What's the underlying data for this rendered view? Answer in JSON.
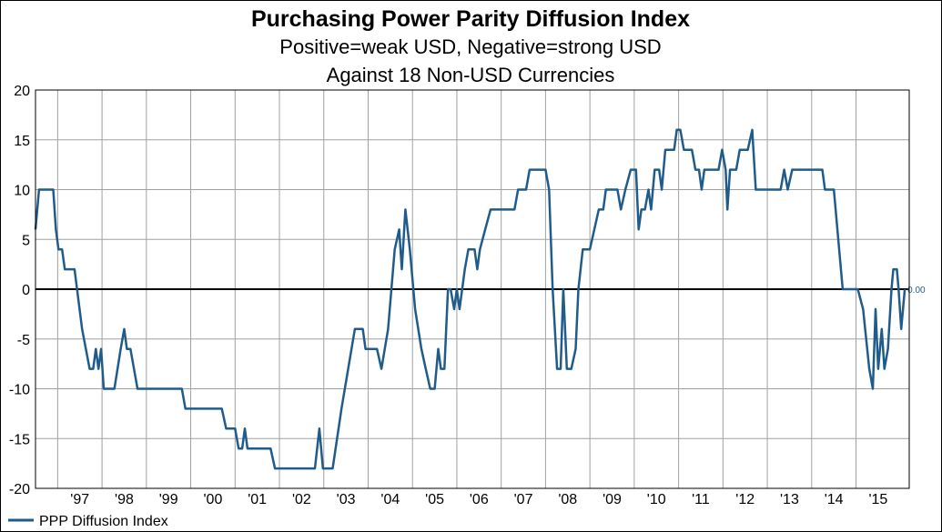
{
  "chart_data": {
    "type": "line",
    "title": "Purchasing Power Parity Diffusion Index",
    "subtitle": [
      "Positive=weak USD, Negative=strong USD",
      "Against 18 Non-USD Currencies"
    ],
    "ylim": [
      -20,
      20
    ],
    "yticks": [
      20,
      15,
      10,
      5,
      0,
      -5,
      -10,
      -15,
      -20
    ],
    "x_domain": [
      1996.5,
      2016.2
    ],
    "x_tick_labels": [
      "'97",
      "'98",
      "'99",
      "'00",
      "'01",
      "'02",
      "'03",
      "'04",
      "'05",
      "'06",
      "'07",
      "'08",
      "'09",
      "'10",
      "'11",
      "'12",
      "'13",
      "'14",
      "'15"
    ],
    "x_tick_years": [
      1997,
      1998,
      1999,
      2000,
      2001,
      2002,
      2003,
      2004,
      2005,
      2006,
      2007,
      2008,
      2009,
      2010,
      2011,
      2012,
      2013,
      2014,
      2015
    ],
    "grid": true,
    "legend": "bottom-left",
    "end_value_label": "0.00",
    "colors": {
      "series": "#1f5c8b",
      "grid": "#a0a0a0",
      "zero_line": "#000000"
    },
    "series": [
      {
        "name": "PPP Diffusion Index",
        "points": [
          [
            1996.5,
            6
          ],
          [
            1996.58,
            10
          ],
          [
            1996.9,
            10
          ],
          [
            1996.96,
            6
          ],
          [
            1997.02,
            4
          ],
          [
            1997.1,
            4
          ],
          [
            1997.16,
            2
          ],
          [
            1997.38,
            2
          ],
          [
            1997.55,
            -4
          ],
          [
            1997.72,
            -8
          ],
          [
            1997.8,
            -8
          ],
          [
            1997.86,
            -6
          ],
          [
            1997.92,
            -8
          ],
          [
            1997.98,
            -6
          ],
          [
            1998.04,
            -10
          ],
          [
            1998.28,
            -10
          ],
          [
            1998.42,
            -6
          ],
          [
            1998.5,
            -4
          ],
          [
            1998.56,
            -6
          ],
          [
            1998.64,
            -6
          ],
          [
            1998.8,
            -10
          ],
          [
            1999.8,
            -10
          ],
          [
            1999.88,
            -12
          ],
          [
            2000.7,
            -12
          ],
          [
            2000.8,
            -14
          ],
          [
            2001.0,
            -14
          ],
          [
            2001.08,
            -16
          ],
          [
            2001.16,
            -16
          ],
          [
            2001.22,
            -14
          ],
          [
            2001.28,
            -16
          ],
          [
            2001.8,
            -16
          ],
          [
            2001.9,
            -18
          ],
          [
            2002.8,
            -18
          ],
          [
            2002.9,
            -14
          ],
          [
            2002.98,
            -18
          ],
          [
            2003.2,
            -18
          ],
          [
            2003.4,
            -12
          ],
          [
            2003.7,
            -4
          ],
          [
            2003.88,
            -4
          ],
          [
            2003.94,
            -6
          ],
          [
            2004.2,
            -6
          ],
          [
            2004.3,
            -8
          ],
          [
            2004.45,
            -4
          ],
          [
            2004.6,
            4
          ],
          [
            2004.7,
            6
          ],
          [
            2004.76,
            2
          ],
          [
            2004.84,
            8
          ],
          [
            2004.94,
            4
          ],
          [
            2005.06,
            -2
          ],
          [
            2005.2,
            -6
          ],
          [
            2005.3,
            -8
          ],
          [
            2005.4,
            -10
          ],
          [
            2005.5,
            -10
          ],
          [
            2005.58,
            -6
          ],
          [
            2005.64,
            -8
          ],
          [
            2005.72,
            -8
          ],
          [
            2005.8,
            0
          ],
          [
            2005.86,
            0
          ],
          [
            2005.94,
            -2
          ],
          [
            2006.0,
            0
          ],
          [
            2006.06,
            -2
          ],
          [
            2006.18,
            2
          ],
          [
            2006.26,
            4
          ],
          [
            2006.4,
            4
          ],
          [
            2006.46,
            2
          ],
          [
            2006.52,
            4
          ],
          [
            2006.64,
            6
          ],
          [
            2006.76,
            8
          ],
          [
            2007.3,
            8
          ],
          [
            2007.38,
            10
          ],
          [
            2007.56,
            10
          ],
          [
            2007.64,
            12
          ],
          [
            2008.0,
            12
          ],
          [
            2008.08,
            10
          ],
          [
            2008.16,
            0
          ],
          [
            2008.26,
            -8
          ],
          [
            2008.34,
            -8
          ],
          [
            2008.4,
            0
          ],
          [
            2008.48,
            -8
          ],
          [
            2008.58,
            -8
          ],
          [
            2008.68,
            -6
          ],
          [
            2008.74,
            0
          ],
          [
            2008.84,
            4
          ],
          [
            2009.0,
            4
          ],
          [
            2009.1,
            6
          ],
          [
            2009.2,
            8
          ],
          [
            2009.3,
            8
          ],
          [
            2009.36,
            10
          ],
          [
            2009.62,
            10
          ],
          [
            2009.7,
            8
          ],
          [
            2009.8,
            10
          ],
          [
            2009.92,
            12
          ],
          [
            2010.04,
            12
          ],
          [
            2010.1,
            6
          ],
          [
            2010.16,
            8
          ],
          [
            2010.24,
            8
          ],
          [
            2010.32,
            10
          ],
          [
            2010.38,
            8
          ],
          [
            2010.46,
            12
          ],
          [
            2010.56,
            12
          ],
          [
            2010.62,
            10
          ],
          [
            2010.7,
            14
          ],
          [
            2010.9,
            14
          ],
          [
            2010.96,
            16
          ],
          [
            2011.04,
            16
          ],
          [
            2011.12,
            14
          ],
          [
            2011.3,
            14
          ],
          [
            2011.38,
            12
          ],
          [
            2011.46,
            12
          ],
          [
            2011.52,
            10
          ],
          [
            2011.58,
            12
          ],
          [
            2011.9,
            12
          ],
          [
            2011.98,
            14
          ],
          [
            2012.06,
            12
          ],
          [
            2012.1,
            8
          ],
          [
            2012.16,
            12
          ],
          [
            2012.3,
            12
          ],
          [
            2012.38,
            14
          ],
          [
            2012.56,
            14
          ],
          [
            2012.66,
            16
          ],
          [
            2012.74,
            10
          ],
          [
            2013.3,
            10
          ],
          [
            2013.38,
            12
          ],
          [
            2013.46,
            10
          ],
          [
            2013.56,
            12
          ],
          [
            2014.24,
            12
          ],
          [
            2014.3,
            10
          ],
          [
            2014.5,
            10
          ],
          [
            2014.62,
            4
          ],
          [
            2014.7,
            0
          ],
          [
            2015.04,
            0
          ],
          [
            2015.16,
            -2
          ],
          [
            2015.3,
            -8
          ],
          [
            2015.38,
            -10
          ],
          [
            2015.44,
            -2
          ],
          [
            2015.5,
            -8
          ],
          [
            2015.58,
            -4
          ],
          [
            2015.64,
            -8
          ],
          [
            2015.72,
            -6
          ],
          [
            2015.8,
            0
          ],
          [
            2015.84,
            2
          ],
          [
            2015.92,
            2
          ],
          [
            2015.96,
            0
          ],
          [
            2016.02,
            -4
          ],
          [
            2016.1,
            0
          ]
        ]
      }
    ]
  }
}
